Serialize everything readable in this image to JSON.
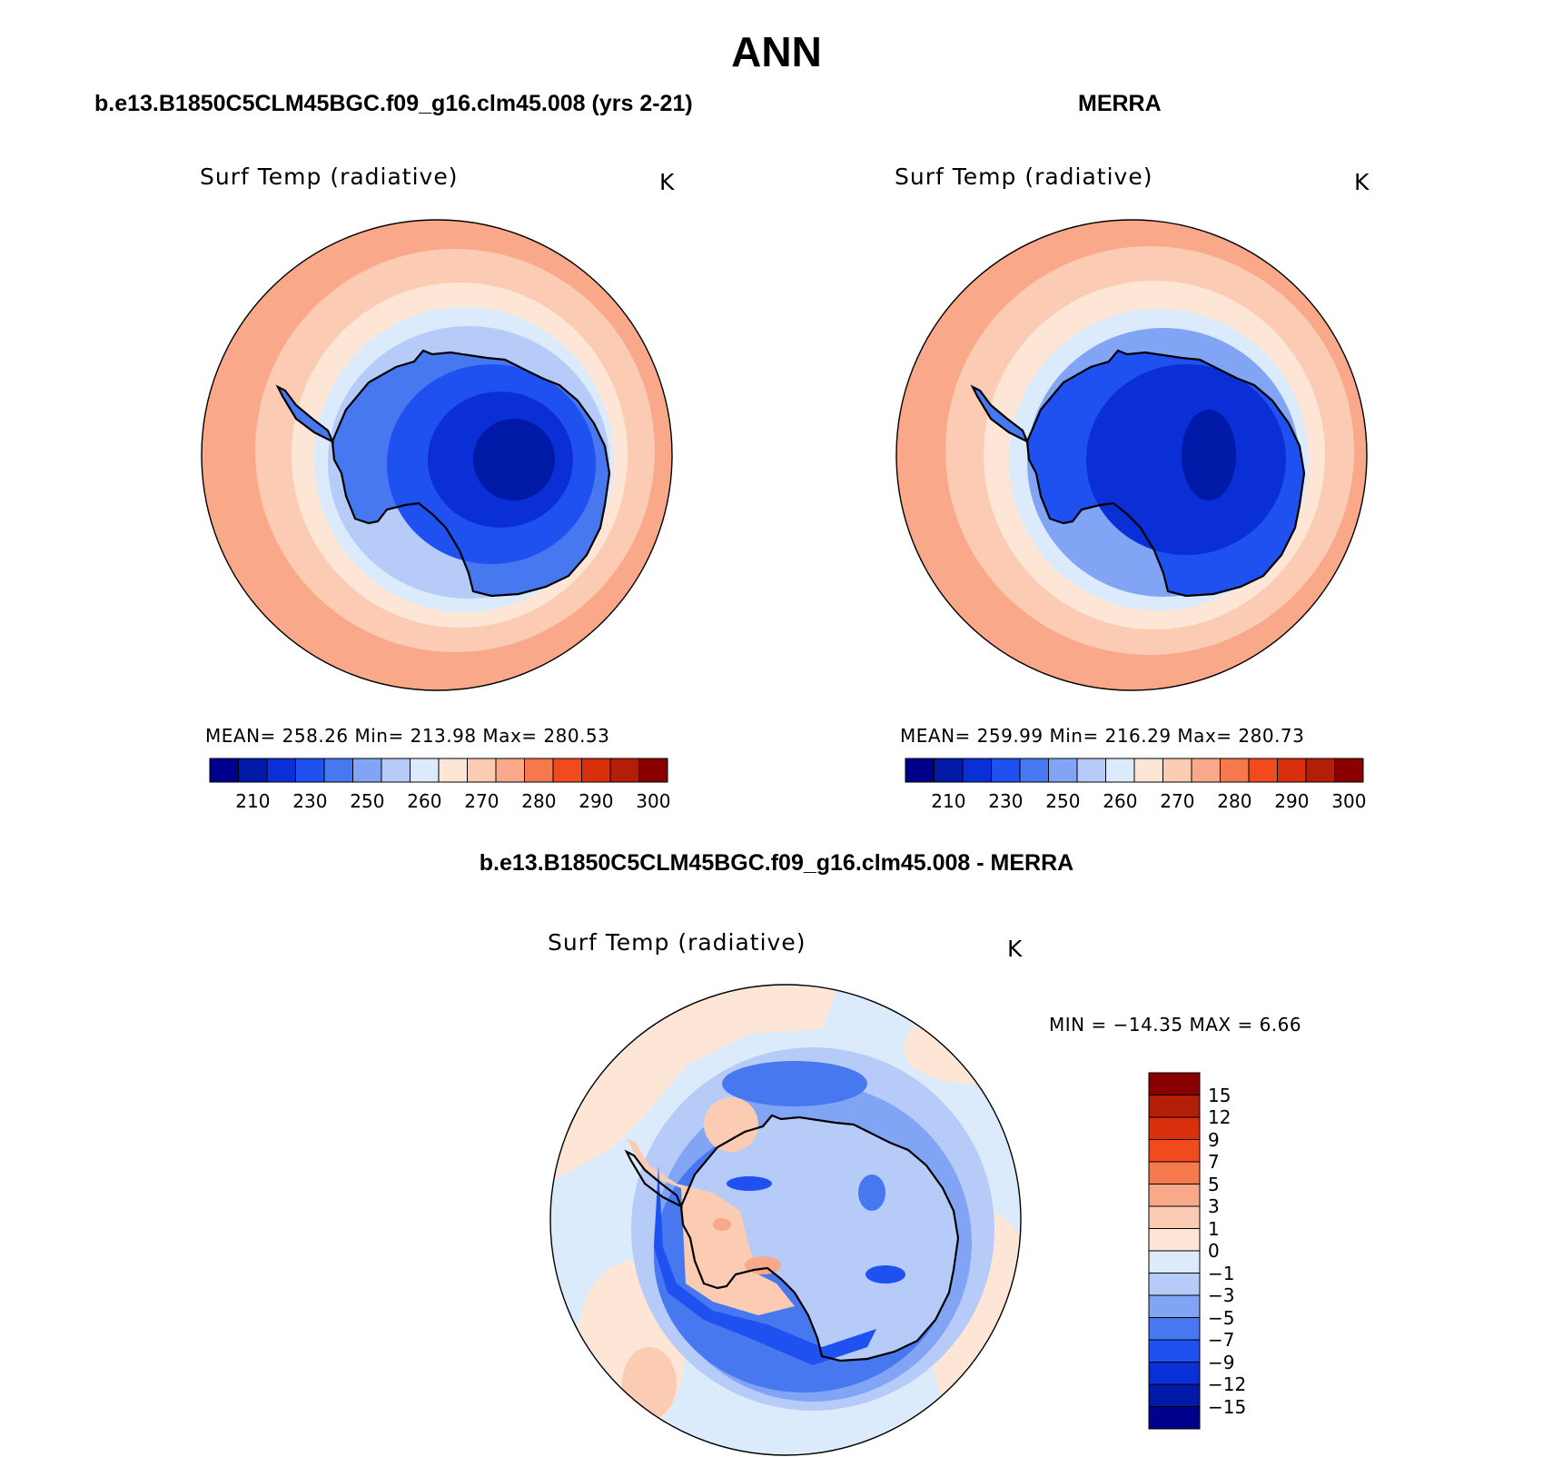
{
  "figure": {
    "title": "ANN",
    "left_panel_title": "b.e13.B1850C5CLM45BGC.f09_g16.clm45.008 (yrs 2-21)",
    "right_panel_title": "MERRA",
    "diff_panel_title": "b.e13.B1850C5CLM45BGC.f09_g16.clm45.008 - MERRA"
  },
  "panels": {
    "model": {
      "variable": "Surf Temp (radiative)",
      "units": "K",
      "stats": "MEAN=  258.26    Min=  213.98    Max=  280.53"
    },
    "obs": {
      "variable": "Surf Temp (radiative)",
      "units": "K",
      "stats": "MEAN=  259.99    Min=  216.29    Max=  280.73"
    },
    "diff": {
      "variable": "Surf Temp (radiative)",
      "units": "K",
      "stats": "MIN  =  −14.35  MAX  =      6.66"
    }
  },
  "colorbar_main": {
    "tick_labels": [
      "210",
      "230",
      "250",
      "260",
      "270",
      "280",
      "290",
      "300"
    ],
    "colors": [
      "#00008c",
      "#0019a6",
      "#0a2fd6",
      "#1f50f0",
      "#4878f0",
      "#82a4f5",
      "#b7cbf8",
      "#dcebfb",
      "#fde6d6",
      "#fccbb3",
      "#f9a98a",
      "#f6784d",
      "#f04a1e",
      "#d92f0d",
      "#b31e08",
      "#8a0000"
    ]
  },
  "colorbar_diff": {
    "tick_labels": [
      "15",
      "12",
      "9",
      "7",
      "5",
      "3",
      "1",
      "0",
      "−1",
      "−3",
      "−5",
      "−7",
      "−9",
      "−12",
      "−15"
    ],
    "colors": [
      "#8a0000",
      "#b31e08",
      "#d92f0d",
      "#f04a1e",
      "#f6784d",
      "#f9a98a",
      "#fccbb3",
      "#fde6d6",
      "#dcebfb",
      "#b7cbf8",
      "#82a4f5",
      "#4878f0",
      "#1f50f0",
      "#0a2fd6",
      "#0019a6",
      "#00008c"
    ]
  }
}
